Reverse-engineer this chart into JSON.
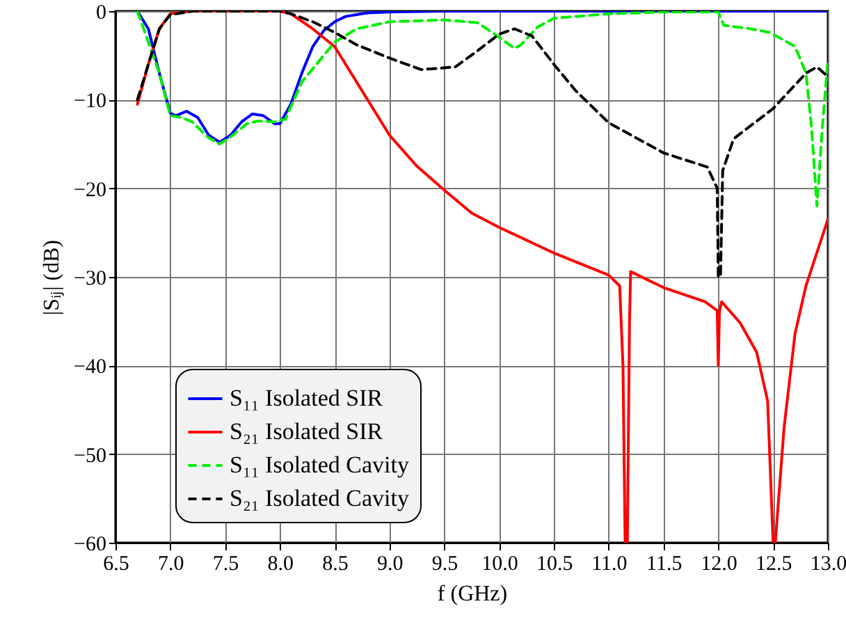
{
  "chart_data": {
    "type": "line",
    "xlabel": "f (GHz)",
    "ylabel": "|Sᵢⱼ| (dB)",
    "xlim": [
      6.5,
      13.0
    ],
    "ylim": [
      -60,
      0
    ],
    "xticks": [
      6.5,
      {
        "value": 7,
        "label": "7.0"
      },
      7.5,
      {
        "value": 8,
        "label": "8.0"
      },
      8.5,
      {
        "value": 9,
        "label": "9.0"
      },
      9.5,
      {
        "value": 10,
        "label": "10.0"
      },
      10.5,
      {
        "value": 11,
        "label": "11.0"
      },
      11.5,
      {
        "value": 12,
        "label": "12.0"
      },
      12.5,
      {
        "value": 13,
        "label": "13.0"
      }
    ],
    "yticks": [
      -60,
      -50,
      -40,
      -30,
      -20,
      -10,
      0
    ],
    "grid": true,
    "legend": "bottom left",
    "series": [
      {
        "name": "S₁₁ Isolated SIR",
        "color": "#0000ff",
        "line_style": "solid",
        "x": [
          6.7,
          6.8,
          6.9,
          7.0,
          7.05,
          7.15,
          7.25,
          7.35,
          7.45,
          7.55,
          7.65,
          7.75,
          7.85,
          7.95,
          8.0,
          8.1,
          8.2,
          8.3,
          8.4,
          8.5,
          8.6,
          8.8,
          9.0,
          9.5,
          13.0
        ],
        "values": [
          0,
          -2,
          -7,
          -11.5,
          -11.8,
          -11.3,
          -12,
          -14,
          -14.8,
          -14,
          -12.5,
          -11.6,
          -11.8,
          -12.7,
          -12.7,
          -10.5,
          -7,
          -4,
          -2.2,
          -1.2,
          -0.6,
          -0.2,
          -0.1,
          0,
          0
        ]
      },
      {
        "name": "S₂₁ Isolated SIR",
        "color": "#ff0000",
        "line_style": "solid",
        "x": [
          6.7,
          6.8,
          6.9,
          7.0,
          7.2,
          8.0,
          8.1,
          8.3,
          8.5,
          8.7,
          9.0,
          9.25,
          9.5,
          9.75,
          10.0,
          10.5,
          11.0,
          11.1,
          11.13,
          11.15,
          11.17,
          11.19,
          11.2,
          11.5,
          11.88,
          11.99,
          12.0,
          12.01,
          12.03,
          12.2,
          12.35,
          12.45,
          12.5,
          12.52,
          12.6,
          12.7,
          12.8,
          13.0
        ],
        "values": [
          -10.5,
          -6,
          -2,
          -0.3,
          0,
          0,
          -0.3,
          -2,
          -4,
          -8,
          -14,
          -17.5,
          -20.2,
          -22.8,
          -24.4,
          -27.3,
          -29.8,
          -31,
          -40,
          -60,
          -60,
          -35,
          -29.4,
          -31.2,
          -32.8,
          -33.8,
          -40,
          -34,
          -32.8,
          -35.2,
          -38.5,
          -44,
          -60,
          -60,
          -47,
          -36.4,
          -31,
          -23.5
        ]
      },
      {
        "name": "S₁₁ Isolated Cavity",
        "color": "#00ee00",
        "line_style": "dashed",
        "x": [
          6.7,
          6.9,
          7.0,
          7.1,
          7.2,
          7.35,
          7.45,
          7.55,
          7.7,
          7.8,
          7.95,
          8.05,
          8.2,
          8.4,
          8.5,
          8.7,
          9.0,
          9.5,
          9.8,
          9.95,
          10.14,
          10.2,
          10.35,
          10.5,
          11.0,
          11.5,
          12.0,
          12.05,
          12.3,
          12.47,
          12.7,
          12.8,
          12.85,
          12.9,
          12.95,
          13.0
        ],
        "values": [
          0,
          -7,
          -11.8,
          -12,
          -12.5,
          -14.3,
          -15,
          -14.2,
          -12.7,
          -12.4,
          -12.5,
          -12.2,
          -8,
          -5,
          -3.5,
          -2,
          -1.2,
          -1,
          -1.3,
          -2.5,
          -4.2,
          -3.8,
          -1.8,
          -0.8,
          -0.3,
          -0.1,
          -0.1,
          -1.6,
          -2,
          -2.4,
          -4,
          -7,
          -13,
          -22,
          -13,
          -5.5
        ]
      },
      {
        "name": "S₂₁ Isolated Cavity",
        "color": "#000000",
        "line_style": "dashed",
        "x": [
          6.7,
          6.8,
          6.9,
          7.0,
          7.2,
          8.0,
          8.1,
          8.3,
          8.5,
          8.7,
          9.0,
          9.29,
          9.6,
          9.8,
          10.0,
          10.14,
          10.3,
          10.5,
          10.7,
          11.0,
          11.5,
          11.9,
          11.99,
          12.0,
          12.02,
          12.04,
          12.14,
          12.5,
          12.8,
          12.9,
          13.0
        ],
        "values": [
          -10,
          -6,
          -2,
          -0.4,
          0,
          0,
          -0.3,
          -1.2,
          -2.4,
          -3.8,
          -5.3,
          -6.6,
          -6.3,
          -4.5,
          -2.6,
          -2,
          -2.8,
          -6,
          -9,
          -12.6,
          -16,
          -17.6,
          -20,
          -30,
          -30,
          -18,
          -14.4,
          -11,
          -7,
          -6.3,
          -7.4
        ]
      }
    ]
  }
}
